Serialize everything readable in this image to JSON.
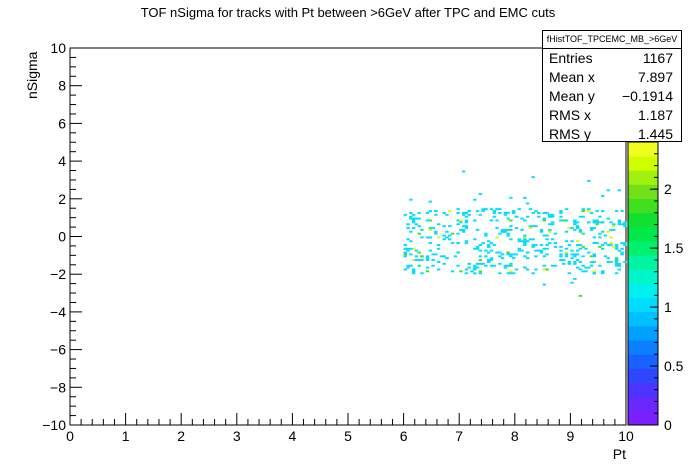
{
  "window": {
    "title": "TOF nSigma for tracks with Pt between >6GeV after TPC and EMC cuts"
  },
  "stats": {
    "name": "fHistTOF_TPCEMC_MB_>6GeV",
    "rows": [
      {
        "label": "Entries",
        "value": "1167"
      },
      {
        "label": "Mean x",
        "value": "7.897"
      },
      {
        "label": "Mean y",
        "value": "−0.1914"
      },
      {
        "label": "RMS x",
        "value": "1.187"
      },
      {
        "label": "RMS y",
        "value": "1.445"
      }
    ]
  },
  "chart_data": {
    "type": "heatmap",
    "title": "TOF nSigma for tracks with Pt between >6GeV after TPC and EMC cuts",
    "xlabel": "Pt",
    "ylabel": "nSigma",
    "xlim": [
      0,
      10
    ],
    "ylim": [
      -10,
      10
    ],
    "x_ticks": [
      "0",
      "1",
      "2",
      "3",
      "4",
      "5",
      "6",
      "7",
      "8",
      "9",
      "10"
    ],
    "y_ticks": [
      "−10",
      "−8",
      "−6",
      "−4",
      "−2",
      "0",
      "2",
      "4",
      "6",
      "8",
      "10"
    ],
    "z_range": [
      0,
      2.4
    ],
    "z_ticks": [
      "0",
      "0.5",
      "1",
      "1.5",
      "2"
    ],
    "palette": [
      "#7a1fff",
      "#6a28ff",
      "#4b34ff",
      "#2f46ff",
      "#1a62ff",
      "#0a80ff",
      "#00a0ff",
      "#00c0ff",
      "#00dcff",
      "#00f0f0",
      "#00f5c8",
      "#00f5a0",
      "#00f070",
      "#00e84a",
      "#10e030",
      "#40e020",
      "#70e018",
      "#a0f010",
      "#d0ff00",
      "#f0ff20"
    ],
    "x_bins": 200,
    "y_bins": 200,
    "occupied_x_range": [
      6.0,
      10.0
    ],
    "core_y_range": [
      -2.0,
      1.5
    ],
    "tail_y_range": [
      -5.0,
      5.0
    ],
    "legend": "top-right",
    "grid": false
  }
}
